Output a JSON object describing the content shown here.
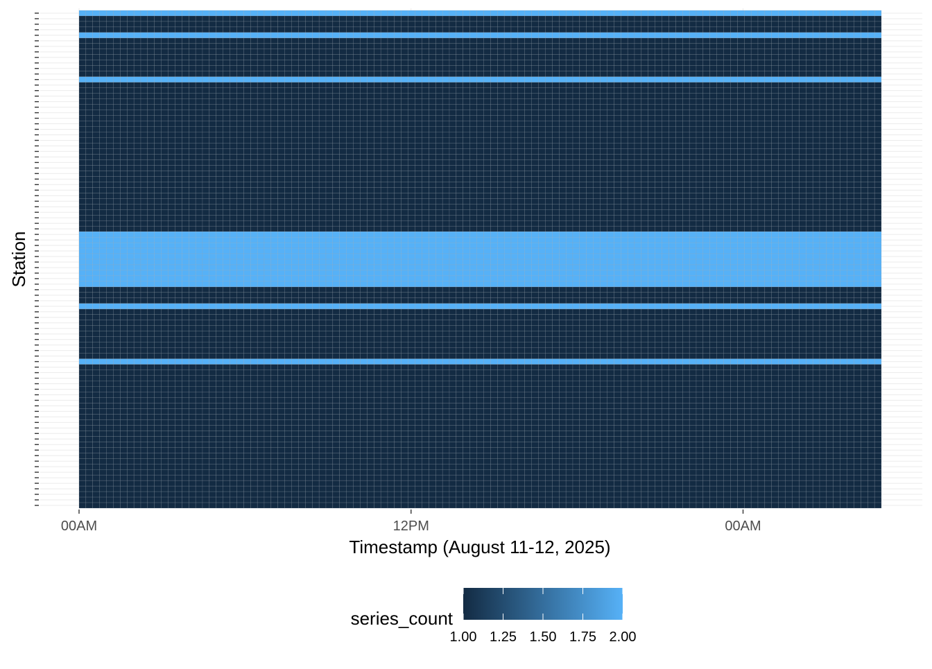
{
  "chart_data": {
    "type": "heatmap",
    "title": "",
    "xlabel": "Timestamp (August 11-12, 2025)",
    "ylabel": "Station",
    "x": {
      "start": "2025-08-11 00:00",
      "end": "2025-08-12 05:00",
      "step": "15 min",
      "columns": 117,
      "ticks": [
        {
          "label": "00AM",
          "time": "2025-08-11 00:00"
        },
        {
          "label": "12PM",
          "time": "2025-08-11 12:00"
        },
        {
          "label": "00AM",
          "time": "2025-08-12 00:00"
        }
      ]
    },
    "y": {
      "station_count": 90,
      "tick_labels_visible": false
    },
    "series_count_by_station": [
      2,
      1,
      1,
      1,
      2,
      1,
      1,
      1,
      1,
      1,
      1,
      1,
      2,
      1,
      1,
      1,
      1,
      1,
      1,
      1,
      1,
      1,
      1,
      1,
      1,
      1,
      1,
      1,
      1,
      1,
      1,
      1,
      1,
      1,
      1,
      1,
      1,
      1,
      1,
      1,
      2,
      2,
      2,
      2,
      2,
      2,
      2,
      2,
      2,
      2,
      1,
      1,
      1,
      2,
      1,
      1,
      1,
      1,
      1,
      1,
      1,
      1,
      1,
      2,
      1,
      1,
      1,
      1,
      1,
      1,
      1,
      1,
      1,
      1,
      1,
      1,
      1,
      1,
      1,
      1,
      1,
      1,
      1,
      1,
      1,
      1,
      1,
      1,
      1,
      1
    ],
    "legend": {
      "title": "series_count",
      "position": "bottom",
      "min": 1.0,
      "max": 2.0,
      "breaks": [
        "1.00",
        "1.25",
        "1.50",
        "1.75",
        "2.00"
      ],
      "colors": {
        "low": "#132B43",
        "high": "#56B1F7"
      }
    },
    "grid": true
  }
}
